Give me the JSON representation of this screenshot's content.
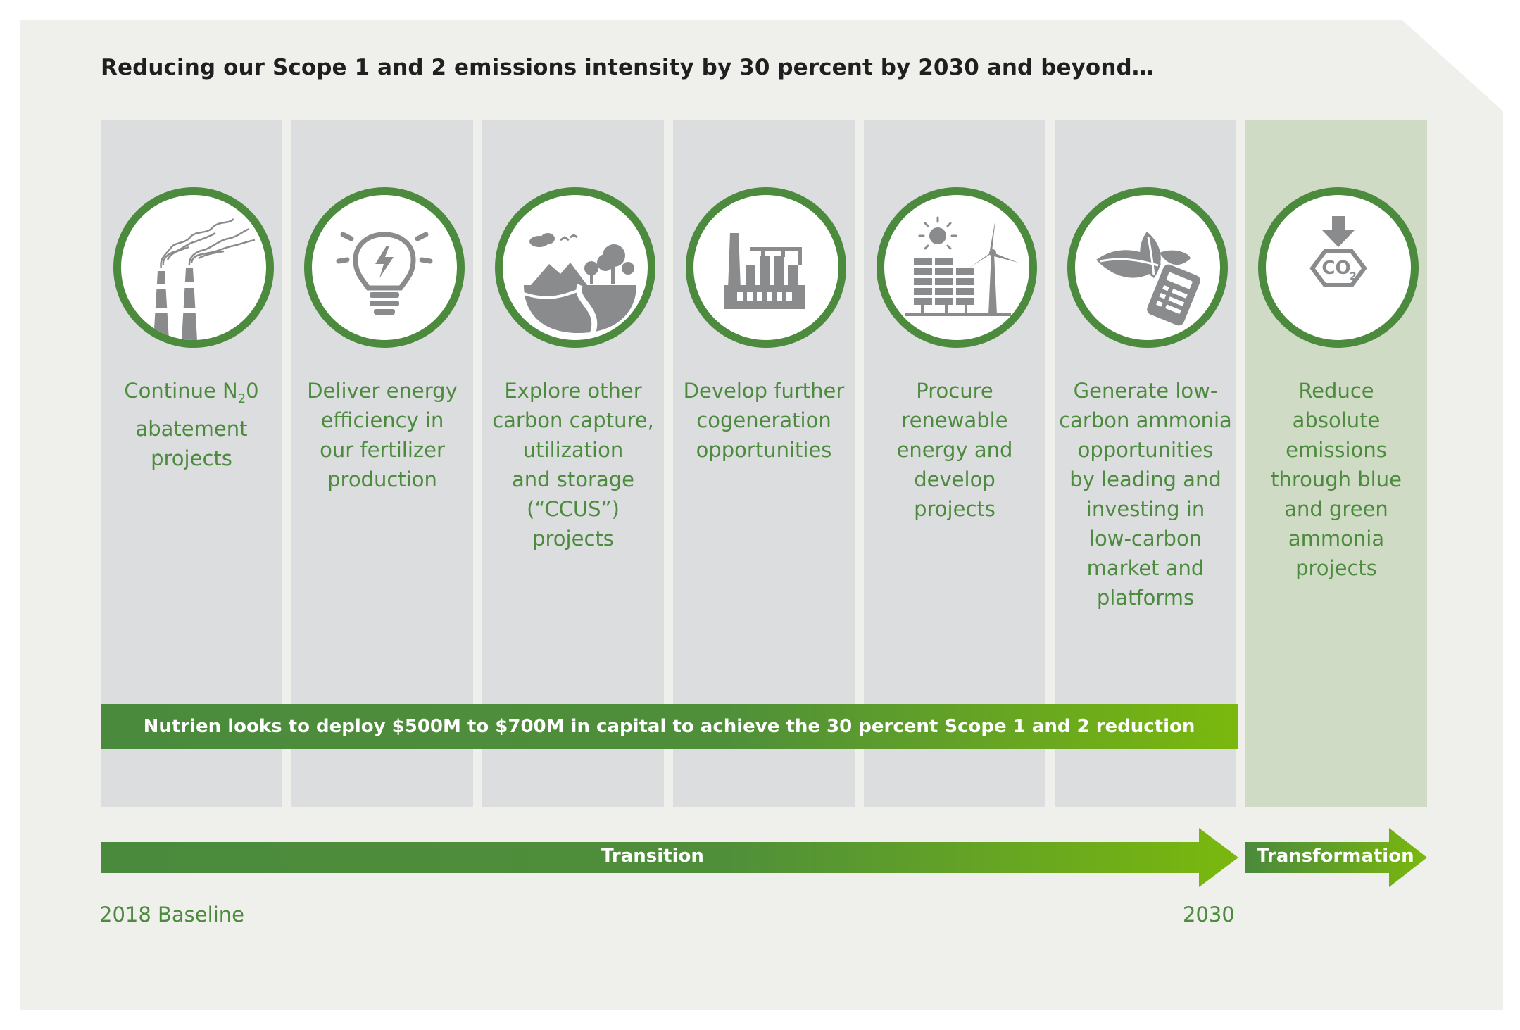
{
  "title": "Reducing our Scope 1 and 2 emissions intensity by 30 percent by 2030 and beyond…",
  "columns": [
    {
      "icon": "factory-smokestacks-icon",
      "text_prefix": "Continue N",
      "text_sub": "2",
      "text_suffix": "0",
      "text_rest": "abatement\nprojects"
    },
    {
      "icon": "lightbulb-energy-icon",
      "text": "Deliver energy\nefficiency in\nour fertilizer\nproduction"
    },
    {
      "icon": "carbon-storage-landscape-icon",
      "text": "Explore other\ncarbon capture,\nutilization\nand storage\n(“CCUS”)\nprojects"
    },
    {
      "icon": "cogeneration-plant-icon",
      "text": "Develop further\ncogeneration\nopportunities"
    },
    {
      "icon": "solar-wind-icon",
      "text": "Procure\nrenewable\nenergy and\ndevelop\nprojects"
    },
    {
      "icon": "leaves-calculator-icon",
      "text": "Generate low-\ncarbon ammonia\nopportunities\nby leading and\ninvesting in\nlow-carbon\nmarket and\nplatforms"
    },
    {
      "icon": "co2-reduction-icon",
      "text": "Reduce\nabsolute\nemissions\nthrough blue\nand green\nammonia\nprojects",
      "co2_main": "CO",
      "co2_sub": "2"
    }
  ],
  "capital_bar": "Nutrien looks to deploy $500M to $700M in capital to achieve the 30 percent Scope 1 and 2 reduction",
  "transition_label": "Transition",
  "transformation_label": "Transformation",
  "baseline_label": "2018 Baseline",
  "end_label": "2030",
  "colors": {
    "green": "#4c8b3e",
    "lime": "#7ab80e",
    "column": "#dcdddf",
    "final_column": "#d0dbc5",
    "icon_gray": "#8a8b8d",
    "panel": "#eff0ec"
  }
}
